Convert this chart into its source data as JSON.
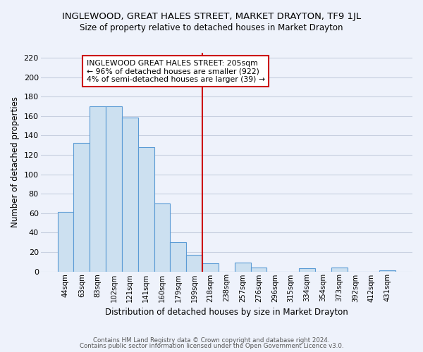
{
  "title": "INGLEWOOD, GREAT HALES STREET, MARKET DRAYTON, TF9 1JL",
  "subtitle": "Size of property relative to detached houses in Market Drayton",
  "xlabel": "Distribution of detached houses by size in Market Drayton",
  "ylabel": "Number of detached properties",
  "bin_labels": [
    "44sqm",
    "63sqm",
    "83sqm",
    "102sqm",
    "121sqm",
    "141sqm",
    "160sqm",
    "179sqm",
    "199sqm",
    "218sqm",
    "238sqm",
    "257sqm",
    "276sqm",
    "296sqm",
    "315sqm",
    "334sqm",
    "354sqm",
    "373sqm",
    "392sqm",
    "412sqm",
    "431sqm"
  ],
  "bar_values": [
    61,
    132,
    170,
    170,
    158,
    128,
    70,
    30,
    17,
    8,
    0,
    9,
    4,
    0,
    0,
    3,
    0,
    4,
    0,
    0,
    1
  ],
  "bar_color": "#cce0f0",
  "bar_edge_color": "#5b9bd5",
  "vline_color": "#cc0000",
  "annotation_title": "INGLEWOOD GREAT HALES STREET: 205sqm",
  "annotation_line1": "← 96% of detached houses are smaller (922)",
  "annotation_line2": "4% of semi-detached houses are larger (39) →",
  "annotation_box_color": "white",
  "annotation_box_edge": "#cc0000",
  "ylim": [
    0,
    225
  ],
  "yticks": [
    0,
    20,
    40,
    60,
    80,
    100,
    120,
    140,
    160,
    180,
    200,
    220
  ],
  "footer1": "Contains HM Land Registry data © Crown copyright and database right 2024.",
  "footer2": "Contains public sector information licensed under the Open Government Licence v3.0.",
  "bg_color": "#eef2fb",
  "grid_color": "#c8d0e0"
}
